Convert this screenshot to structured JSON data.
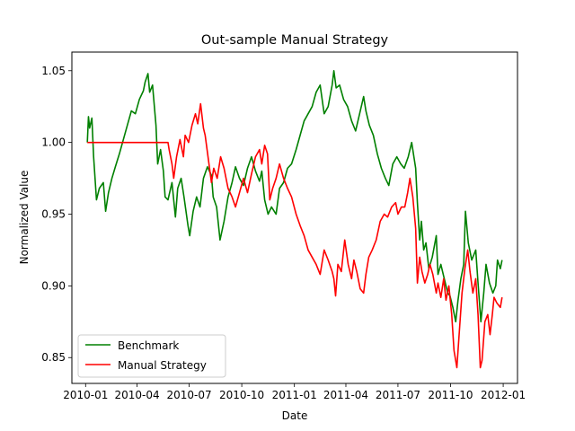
{
  "chart_data": {
    "type": "line",
    "title": "Out-sample Manual Strategy",
    "xlabel": "Date",
    "ylabel": "Normalized Value",
    "x_range": [
      "2010-01-04",
      "2011-12-30"
    ],
    "xlim": [
      "2009-12-08",
      "2012-01-26"
    ],
    "ylim": [
      0.832,
      1.063
    ],
    "x_ticks": [
      "2010-01",
      "2010-04",
      "2010-07",
      "2010-10",
      "2011-01",
      "2011-04",
      "2011-07",
      "2011-10",
      "2012-01"
    ],
    "y_ticks": [
      "0.85",
      "0.90",
      "0.95",
      "1.00",
      "1.05"
    ],
    "grid": false,
    "legend": {
      "position": "lower-left",
      "entries": [
        "Benchmark",
        "Manual Strategy"
      ]
    },
    "series": [
      {
        "name": "Benchmark",
        "color": "#008000",
        "points": [
          [
            "2010-01-04",
            1.0
          ],
          [
            "2010-01-06",
            1.018
          ],
          [
            "2010-01-08",
            1.01
          ],
          [
            "2010-01-12",
            1.017
          ],
          [
            "2010-01-15",
            0.99
          ],
          [
            "2010-01-20",
            0.96
          ],
          [
            "2010-01-25",
            0.968
          ],
          [
            "2010-02-01",
            0.972
          ],
          [
            "2010-02-05",
            0.952
          ],
          [
            "2010-02-10",
            0.965
          ],
          [
            "2010-02-16",
            0.975
          ],
          [
            "2010-02-22",
            0.983
          ],
          [
            "2010-03-01",
            0.992
          ],
          [
            "2010-03-08",
            1.002
          ],
          [
            "2010-03-15",
            1.012
          ],
          [
            "2010-03-22",
            1.022
          ],
          [
            "2010-03-29",
            1.02
          ],
          [
            "2010-04-05",
            1.03
          ],
          [
            "2010-04-12",
            1.036
          ],
          [
            "2010-04-15",
            1.042
          ],
          [
            "2010-04-20",
            1.048
          ],
          [
            "2010-04-23",
            1.035
          ],
          [
            "2010-04-28",
            1.04
          ],
          [
            "2010-05-04",
            1.012
          ],
          [
            "2010-05-07",
            0.985
          ],
          [
            "2010-05-12",
            0.995
          ],
          [
            "2010-05-17",
            0.98
          ],
          [
            "2010-05-20",
            0.962
          ],
          [
            "2010-05-25",
            0.96
          ],
          [
            "2010-06-01",
            0.972
          ],
          [
            "2010-06-07",
            0.948
          ],
          [
            "2010-06-11",
            0.968
          ],
          [
            "2010-06-17",
            0.975
          ],
          [
            "2010-06-22",
            0.962
          ],
          [
            "2010-06-29",
            0.942
          ],
          [
            "2010-07-02",
            0.935
          ],
          [
            "2010-07-08",
            0.952
          ],
          [
            "2010-07-14",
            0.962
          ],
          [
            "2010-07-20",
            0.955
          ],
          [
            "2010-07-26",
            0.975
          ],
          [
            "2010-08-02",
            0.983
          ],
          [
            "2010-08-09",
            0.977
          ],
          [
            "2010-08-12",
            0.962
          ],
          [
            "2010-08-18",
            0.955
          ],
          [
            "2010-08-24",
            0.932
          ],
          [
            "2010-08-31",
            0.945
          ],
          [
            "2010-09-07",
            0.962
          ],
          [
            "2010-09-14",
            0.972
          ],
          [
            "2010-09-20",
            0.983
          ],
          [
            "2010-09-27",
            0.975
          ],
          [
            "2010-10-04",
            0.97
          ],
          [
            "2010-10-11",
            0.982
          ],
          [
            "2010-10-18",
            0.99
          ],
          [
            "2010-10-25",
            0.98
          ],
          [
            "2010-11-01",
            0.973
          ],
          [
            "2010-11-05",
            0.98
          ],
          [
            "2010-11-10",
            0.96
          ],
          [
            "2010-11-16",
            0.95
          ],
          [
            "2010-11-22",
            0.955
          ],
          [
            "2010-11-30",
            0.95
          ],
          [
            "2010-12-06",
            0.968
          ],
          [
            "2010-12-13",
            0.972
          ],
          [
            "2010-12-20",
            0.982
          ],
          [
            "2010-12-27",
            0.985
          ],
          [
            "2011-01-04",
            0.995
          ],
          [
            "2011-01-11",
            1.005
          ],
          [
            "2011-01-18",
            1.015
          ],
          [
            "2011-01-25",
            1.02
          ],
          [
            "2011-02-01",
            1.025
          ],
          [
            "2011-02-08",
            1.035
          ],
          [
            "2011-02-15",
            1.04
          ],
          [
            "2011-02-22",
            1.02
          ],
          [
            "2011-03-01",
            1.025
          ],
          [
            "2011-03-08",
            1.04
          ],
          [
            "2011-03-11",
            1.05
          ],
          [
            "2011-03-15",
            1.038
          ],
          [
            "2011-03-21",
            1.04
          ],
          [
            "2011-03-28",
            1.03
          ],
          [
            "2011-04-04",
            1.025
          ],
          [
            "2011-04-11",
            1.015
          ],
          [
            "2011-04-18",
            1.008
          ],
          [
            "2011-04-25",
            1.02
          ],
          [
            "2011-05-02",
            1.032
          ],
          [
            "2011-05-06",
            1.022
          ],
          [
            "2011-05-12",
            1.012
          ],
          [
            "2011-05-19",
            1.005
          ],
          [
            "2011-05-26",
            0.992
          ],
          [
            "2011-06-02",
            0.982
          ],
          [
            "2011-06-09",
            0.975
          ],
          [
            "2011-06-15",
            0.97
          ],
          [
            "2011-06-22",
            0.985
          ],
          [
            "2011-06-29",
            0.99
          ],
          [
            "2011-07-06",
            0.985
          ],
          [
            "2011-07-12",
            0.982
          ],
          [
            "2011-07-19",
            0.99
          ],
          [
            "2011-07-25",
            1.0
          ],
          [
            "2011-08-01",
            0.982
          ],
          [
            "2011-08-04",
            0.958
          ],
          [
            "2011-08-08",
            0.932
          ],
          [
            "2011-08-11",
            0.945
          ],
          [
            "2011-08-15",
            0.925
          ],
          [
            "2011-08-19",
            0.93
          ],
          [
            "2011-08-24",
            0.912
          ],
          [
            "2011-08-30",
            0.92
          ],
          [
            "2011-09-06",
            0.935
          ],
          [
            "2011-09-09",
            0.908
          ],
          [
            "2011-09-14",
            0.915
          ],
          [
            "2011-09-20",
            0.905
          ],
          [
            "2011-09-26",
            0.895
          ],
          [
            "2011-09-30",
            0.893
          ],
          [
            "2011-10-05",
            0.885
          ],
          [
            "2011-10-10",
            0.875
          ],
          [
            "2011-10-14",
            0.89
          ],
          [
            "2011-10-19",
            0.905
          ],
          [
            "2011-10-24",
            0.915
          ],
          [
            "2011-10-27",
            0.952
          ],
          [
            "2011-11-01",
            0.93
          ],
          [
            "2011-11-07",
            0.918
          ],
          [
            "2011-11-14",
            0.925
          ],
          [
            "2011-11-18",
            0.902
          ],
          [
            "2011-11-23",
            0.875
          ],
          [
            "2011-11-28",
            0.895
          ],
          [
            "2011-12-02",
            0.915
          ],
          [
            "2011-12-08",
            0.902
          ],
          [
            "2011-12-14",
            0.895
          ],
          [
            "2011-12-19",
            0.9
          ],
          [
            "2011-12-22",
            0.918
          ],
          [
            "2011-12-27",
            0.912
          ],
          [
            "2011-12-30",
            0.918
          ]
        ]
      },
      {
        "name": "Manual Strategy",
        "color": "#ff0000",
        "points": [
          [
            "2010-01-04",
            1.0
          ],
          [
            "2010-05-25",
            1.0
          ],
          [
            "2010-05-27",
            0.995
          ],
          [
            "2010-06-01",
            0.985
          ],
          [
            "2010-06-04",
            0.975
          ],
          [
            "2010-06-09",
            0.99
          ],
          [
            "2010-06-15",
            1.002
          ],
          [
            "2010-06-21",
            0.99
          ],
          [
            "2010-06-24",
            1.005
          ],
          [
            "2010-06-30",
            1.0
          ],
          [
            "2010-07-06",
            1.012
          ],
          [
            "2010-07-12",
            1.02
          ],
          [
            "2010-07-16",
            1.013
          ],
          [
            "2010-07-21",
            1.027
          ],
          [
            "2010-07-26",
            1.01
          ],
          [
            "2010-07-29",
            1.005
          ],
          [
            "2010-08-03",
            0.99
          ],
          [
            "2010-08-09",
            0.972
          ],
          [
            "2010-08-13",
            0.982
          ],
          [
            "2010-08-19",
            0.975
          ],
          [
            "2010-08-25",
            0.99
          ],
          [
            "2010-08-31",
            0.982
          ],
          [
            "2010-09-07",
            0.968
          ],
          [
            "2010-09-14",
            0.962
          ],
          [
            "2010-09-20",
            0.955
          ],
          [
            "2010-09-27",
            0.965
          ],
          [
            "2010-10-04",
            0.975
          ],
          [
            "2010-10-11",
            0.965
          ],
          [
            "2010-10-18",
            0.978
          ],
          [
            "2010-10-25",
            0.99
          ],
          [
            "2010-11-01",
            0.995
          ],
          [
            "2010-11-05",
            0.985
          ],
          [
            "2010-11-10",
            0.998
          ],
          [
            "2010-11-15",
            0.992
          ],
          [
            "2010-11-19",
            0.96
          ],
          [
            "2010-11-24",
            0.968
          ],
          [
            "2010-11-30",
            0.975
          ],
          [
            "2010-12-06",
            0.985
          ],
          [
            "2010-12-13",
            0.975
          ],
          [
            "2010-12-20",
            0.968
          ],
          [
            "2010-12-27",
            0.962
          ],
          [
            "2011-01-04",
            0.95
          ],
          [
            "2011-01-11",
            0.942
          ],
          [
            "2011-01-18",
            0.935
          ],
          [
            "2011-01-25",
            0.925
          ],
          [
            "2011-02-01",
            0.92
          ],
          [
            "2011-02-08",
            0.915
          ],
          [
            "2011-02-15",
            0.908
          ],
          [
            "2011-02-22",
            0.925
          ],
          [
            "2011-03-01",
            0.918
          ],
          [
            "2011-03-08",
            0.91
          ],
          [
            "2011-03-11",
            0.905
          ],
          [
            "2011-03-14",
            0.893
          ],
          [
            "2011-03-18",
            0.915
          ],
          [
            "2011-03-24",
            0.91
          ],
          [
            "2011-03-30",
            0.932
          ],
          [
            "2011-04-05",
            0.915
          ],
          [
            "2011-04-11",
            0.905
          ],
          [
            "2011-04-15",
            0.918
          ],
          [
            "2011-04-20",
            0.91
          ],
          [
            "2011-04-26",
            0.898
          ],
          [
            "2011-05-02",
            0.895
          ],
          [
            "2011-05-06",
            0.908
          ],
          [
            "2011-05-11",
            0.92
          ],
          [
            "2011-05-17",
            0.925
          ],
          [
            "2011-05-24",
            0.932
          ],
          [
            "2011-05-31",
            0.945
          ],
          [
            "2011-06-07",
            0.95
          ],
          [
            "2011-06-13",
            0.948
          ],
          [
            "2011-06-20",
            0.955
          ],
          [
            "2011-06-27",
            0.958
          ],
          [
            "2011-07-01",
            0.95
          ],
          [
            "2011-07-07",
            0.955
          ],
          [
            "2011-07-13",
            0.955
          ],
          [
            "2011-07-18",
            0.965
          ],
          [
            "2011-07-22",
            0.975
          ],
          [
            "2011-07-27",
            0.962
          ],
          [
            "2011-08-01",
            0.94
          ],
          [
            "2011-08-04",
            0.902
          ],
          [
            "2011-08-08",
            0.92
          ],
          [
            "2011-08-12",
            0.91
          ],
          [
            "2011-08-17",
            0.902
          ],
          [
            "2011-08-22",
            0.908
          ],
          [
            "2011-08-26",
            0.915
          ],
          [
            "2011-08-31",
            0.908
          ],
          [
            "2011-09-06",
            0.895
          ],
          [
            "2011-09-09",
            0.902
          ],
          [
            "2011-09-14",
            0.892
          ],
          [
            "2011-09-19",
            0.905
          ],
          [
            "2011-09-23",
            0.89
          ],
          [
            "2011-09-28",
            0.9
          ],
          [
            "2011-10-03",
            0.88
          ],
          [
            "2011-10-07",
            0.855
          ],
          [
            "2011-10-12",
            0.843
          ],
          [
            "2011-10-17",
            0.872
          ],
          [
            "2011-10-21",
            0.895
          ],
          [
            "2011-10-26",
            0.912
          ],
          [
            "2011-10-31",
            0.925
          ],
          [
            "2011-11-04",
            0.91
          ],
          [
            "2011-11-09",
            0.895
          ],
          [
            "2011-11-14",
            0.905
          ],
          [
            "2011-11-18",
            0.88
          ],
          [
            "2011-11-22",
            0.843
          ],
          [
            "2011-11-25",
            0.848
          ],
          [
            "2011-11-30",
            0.875
          ],
          [
            "2011-12-05",
            0.88
          ],
          [
            "2011-12-09",
            0.866
          ],
          [
            "2011-12-13",
            0.88
          ],
          [
            "2011-12-16",
            0.892
          ],
          [
            "2011-12-21",
            0.888
          ],
          [
            "2011-12-27",
            0.885
          ],
          [
            "2011-12-30",
            0.892
          ]
        ]
      }
    ]
  }
}
